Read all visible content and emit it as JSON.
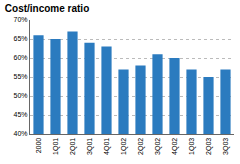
{
  "chart_data": {
    "type": "bar",
    "title": "Cost/income ratio",
    "categories": [
      "2000",
      "1Q01",
      "2Q01",
      "3Q01",
      "4Q01",
      "1Q02",
      "2Q02",
      "3Q02",
      "4Q02",
      "1Q03",
      "2Q03",
      "3Q03"
    ],
    "values": [
      66,
      65,
      67,
      64,
      63,
      57,
      58,
      61,
      60,
      57,
      55,
      57
    ],
    "color": "#2b7bbf",
    "ylim": [
      40,
      70
    ],
    "yticks": [
      {
        "value": 40,
        "label": "40%"
      },
      {
        "value": 45,
        "label": "45%"
      },
      {
        "value": 50,
        "label": "50%"
      },
      {
        "value": 55,
        "label": "55%"
      },
      {
        "value": 60,
        "label": "60%"
      },
      {
        "value": 65,
        "label": "65%"
      },
      {
        "value": 70,
        "label": "70%"
      }
    ],
    "grid": true
  }
}
